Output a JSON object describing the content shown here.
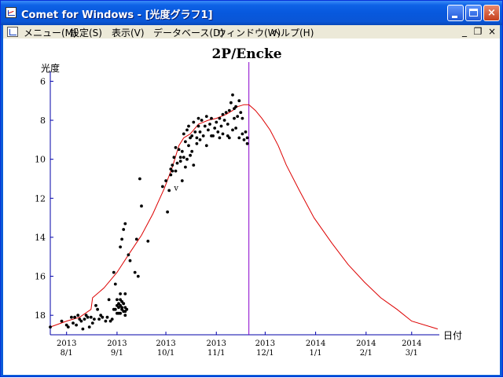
{
  "window": {
    "title": "Comet for Windows - [光度グラフ1]",
    "controls": {
      "minimize": "_",
      "close": "×"
    }
  },
  "menubar": {
    "items": [
      "メニュー(M)",
      "設定(S)",
      "表示(V)",
      "データベース(D)",
      "ウィンドウ(W)",
      "ヘルプ(H)"
    ],
    "mdi_controls": {
      "minimize": "_",
      "restore": "❐",
      "close": "×"
    }
  },
  "chart_data": {
    "type": "scatter",
    "title": "2P/Encke",
    "ylabel": "光度",
    "xlabel": "日付",
    "y_inverted": true,
    "ylim": [
      5.5,
      19.0
    ],
    "yticks": [
      6,
      8,
      10,
      12,
      14,
      16,
      18
    ],
    "xlim": [
      "2013-07-22",
      "2014-03-18"
    ],
    "xticks": [
      {
        "date": "2013-08-01",
        "year": "2013",
        "md": "8/1"
      },
      {
        "date": "2013-09-01",
        "year": "2013",
        "md": "9/1"
      },
      {
        "date": "2013-10-01",
        "year": "2013",
        "md": "10/1"
      },
      {
        "date": "2013-11-01",
        "year": "2013",
        "md": "11/1"
      },
      {
        "date": "2013-12-01",
        "year": "2013",
        "md": "12/1"
      },
      {
        "date": "2014-01-01",
        "year": "2014",
        "md": "1/1"
      },
      {
        "date": "2014-02-01",
        "year": "2014",
        "md": "2/1"
      },
      {
        "date": "2014-03-01",
        "year": "2014",
        "md": "3/1"
      }
    ],
    "marker_date": "2013-11-21",
    "annotations": [
      {
        "text": "v",
        "date": "2013-10-06",
        "mag": 11.6
      }
    ],
    "colors": {
      "axis": "#0000aa",
      "curve": "#dd0000",
      "marker": "#8800cc",
      "points": "#000000"
    },
    "series": [
      {
        "kind": "predicted",
        "points": [
          [
            "2013-07-22",
            18.6
          ],
          [
            "2013-08-01",
            18.3
          ],
          [
            "2013-08-09",
            18.1
          ],
          [
            "2013-08-16",
            17.7
          ],
          [
            "2013-08-17",
            17.1
          ],
          [
            "2013-08-24",
            16.6
          ],
          [
            "2013-09-01",
            15.8
          ],
          [
            "2013-09-08",
            14.9
          ],
          [
            "2013-09-16",
            13.9
          ],
          [
            "2013-09-23",
            12.8
          ],
          [
            "2013-09-30",
            11.5
          ],
          [
            "2013-10-05",
            10.4
          ],
          [
            "2013-10-09",
            9.3
          ],
          [
            "2013-10-12",
            8.9
          ],
          [
            "2013-10-16",
            8.7
          ],
          [
            "2013-10-21",
            8.2
          ],
          [
            "2013-10-27",
            8.0
          ],
          [
            "2013-11-01",
            7.9
          ],
          [
            "2013-11-07",
            7.7
          ],
          [
            "2013-11-11",
            7.5
          ],
          [
            "2013-11-14",
            7.3
          ],
          [
            "2013-11-18",
            7.2
          ],
          [
            "2013-11-21",
            7.2
          ],
          [
            "2013-11-25",
            7.5
          ],
          [
            "2013-11-29",
            7.9
          ],
          [
            "2013-12-04",
            8.5
          ],
          [
            "2013-12-09",
            9.3
          ],
          [
            "2013-12-14",
            10.3
          ],
          [
            "2013-12-22",
            11.6
          ],
          [
            "2013-12-31",
            13.0
          ],
          [
            "2014-01-11",
            14.3
          ],
          [
            "2014-01-21",
            15.4
          ],
          [
            "2014-01-31",
            16.3
          ],
          [
            "2014-02-10",
            17.1
          ],
          [
            "2014-02-20",
            17.7
          ],
          [
            "2014-03-01",
            18.3
          ],
          [
            "2014-03-17",
            18.7
          ]
        ]
      },
      {
        "kind": "observed",
        "points": [
          [
            "2013-07-22",
            18.6
          ],
          [
            "2013-07-29",
            18.3
          ],
          [
            "2013-08-01",
            18.5
          ],
          [
            "2013-08-02",
            18.6
          ],
          [
            "2013-08-04",
            18.1
          ],
          [
            "2013-08-05",
            18.4
          ],
          [
            "2013-08-06",
            18.1
          ],
          [
            "2013-08-07",
            18.5
          ],
          [
            "2013-08-08",
            18.0
          ],
          [
            "2013-08-09",
            18.2
          ],
          [
            "2013-08-10",
            18.3
          ],
          [
            "2013-08-11",
            18.7
          ],
          [
            "2013-08-12",
            18.2
          ],
          [
            "2013-08-13",
            18.0
          ],
          [
            "2013-08-14",
            18.1
          ],
          [
            "2013-08-15",
            18.6
          ],
          [
            "2013-08-16",
            18.1
          ],
          [
            "2013-08-17",
            18.4
          ],
          [
            "2013-08-18",
            18.2
          ],
          [
            "2013-08-19",
            17.5
          ],
          [
            "2013-08-20",
            17.7
          ],
          [
            "2013-08-21",
            18.2
          ],
          [
            "2013-08-22",
            18.0
          ],
          [
            "2013-08-23",
            18.1
          ],
          [
            "2013-08-25",
            18.3
          ],
          [
            "2013-08-26",
            18.1
          ],
          [
            "2013-08-27",
            17.2
          ],
          [
            "2013-08-28",
            18.3
          ],
          [
            "2013-08-30",
            17.7
          ],
          [
            "2013-08-31",
            17.7
          ],
          [
            "2013-09-01",
            17.5
          ],
          [
            "2013-09-02",
            17.9
          ],
          [
            "2013-09-03",
            17.2
          ],
          [
            "2013-09-04",
            17.6
          ],
          [
            "2013-09-05",
            17.4
          ],
          [
            "2013-09-06",
            17.8
          ],
          [
            "2013-09-01",
            17.2
          ],
          [
            "2013-09-02",
            17.6
          ],
          [
            "2013-09-03",
            17.5
          ],
          [
            "2013-09-04",
            17.3
          ],
          [
            "2013-09-05",
            17.8
          ],
          [
            "2013-09-06",
            18.0
          ],
          [
            "2013-09-07",
            17.7
          ],
          [
            "2013-09-01",
            17.9
          ],
          [
            "2013-09-02",
            17.4
          ],
          [
            "2013-09-03",
            17.9
          ],
          [
            "2013-09-04",
            17.7
          ],
          [
            "2013-09-05",
            17.4
          ],
          [
            "2013-09-06",
            17.6
          ],
          [
            "2013-09-03",
            16.9
          ],
          [
            "2013-09-06",
            16.9
          ],
          [
            "2013-08-29",
            18.2
          ],
          [
            "2013-08-30",
            15.8
          ],
          [
            "2013-08-31",
            16.4
          ],
          [
            "2013-09-03",
            14.5
          ],
          [
            "2013-09-04",
            14.1
          ],
          [
            "2013-09-05",
            13.6
          ],
          [
            "2013-09-06",
            13.3
          ],
          [
            "2013-09-08",
            14.9
          ],
          [
            "2013-09-09",
            15.2
          ],
          [
            "2013-09-12",
            15.8
          ],
          [
            "2013-09-13",
            14.1
          ],
          [
            "2013-09-14",
            16.0
          ],
          [
            "2013-09-15",
            11.0
          ],
          [
            "2013-09-16",
            12.4
          ],
          [
            "2013-09-20",
            14.2
          ],
          [
            "2013-09-29",
            11.4
          ],
          [
            "2013-10-01",
            11.1
          ],
          [
            "2013-10-02",
            12.7
          ],
          [
            "2013-10-03",
            11.6
          ],
          [
            "2013-10-04",
            10.5
          ],
          [
            "2013-10-04",
            10.8
          ],
          [
            "2013-10-05",
            10.3
          ],
          [
            "2013-10-05",
            10.6
          ],
          [
            "2013-10-06",
            9.9
          ],
          [
            "2013-10-07",
            10.6
          ],
          [
            "2013-10-07",
            9.4
          ],
          [
            "2013-10-08",
            10.2
          ],
          [
            "2013-10-09",
            9.5
          ],
          [
            "2013-10-10",
            9.9
          ],
          [
            "2013-10-10",
            10.1
          ],
          [
            "2013-10-11",
            9.6
          ],
          [
            "2013-10-11",
            11.1
          ],
          [
            "2013-10-12",
            8.7
          ],
          [
            "2013-10-12",
            9.9
          ],
          [
            "2013-10-13",
            10.4
          ],
          [
            "2013-10-13",
            9.1
          ],
          [
            "2013-10-14",
            8.5
          ],
          [
            "2013-10-14",
            10.0
          ],
          [
            "2013-10-15",
            8.3
          ],
          [
            "2013-10-15",
            9.3
          ],
          [
            "2013-10-16",
            8.9
          ],
          [
            "2013-10-16",
            9.8
          ],
          [
            "2013-10-17",
            8.8
          ],
          [
            "2013-10-17",
            9.6
          ],
          [
            "2013-10-18",
            8.1
          ],
          [
            "2013-10-18",
            10.3
          ],
          [
            "2013-10-19",
            8.6
          ],
          [
            "2013-10-20",
            8.9
          ],
          [
            "2013-10-20",
            9.2
          ],
          [
            "2013-10-21",
            7.9
          ],
          [
            "2013-10-21",
            8.3
          ],
          [
            "2013-10-22",
            9.0
          ],
          [
            "2013-10-23",
            8.0
          ],
          [
            "2013-10-24",
            8.8
          ],
          [
            "2013-10-25",
            8.3
          ],
          [
            "2013-10-26",
            9.3
          ],
          [
            "2013-10-27",
            8.5
          ],
          [
            "2013-10-28",
            8.2
          ],
          [
            "2013-10-29",
            7.9
          ],
          [
            "2013-10-30",
            8.8
          ],
          [
            "2013-10-31",
            8.4
          ],
          [
            "2013-11-01",
            8.1
          ],
          [
            "2013-11-02",
            8.6
          ],
          [
            "2013-11-03",
            7.9
          ],
          [
            "2013-11-04",
            8.3
          ],
          [
            "2013-11-05",
            7.7
          ],
          [
            "2013-11-05",
            8.7
          ],
          [
            "2013-11-06",
            8.0
          ],
          [
            "2013-11-07",
            7.6
          ],
          [
            "2013-11-08",
            8.2
          ],
          [
            "2013-11-08",
            8.8
          ],
          [
            "2013-11-09",
            7.5
          ],
          [
            "2013-11-10",
            7.1
          ],
          [
            "2013-11-11",
            6.7
          ],
          [
            "2013-11-11",
            8.5
          ],
          [
            "2013-11-12",
            7.9
          ],
          [
            "2013-11-13",
            7.3
          ],
          [
            "2013-11-13",
            8.4
          ],
          [
            "2013-11-14",
            7.8
          ],
          [
            "2013-11-15",
            7.0
          ],
          [
            "2013-11-15",
            8.9
          ],
          [
            "2013-11-16",
            7.6
          ],
          [
            "2013-11-17",
            8.7
          ],
          [
            "2013-11-18",
            9.0
          ],
          [
            "2013-11-19",
            8.6
          ],
          [
            "2013-11-20",
            9.2
          ],
          [
            "2013-11-20",
            8.9
          ],
          [
            "2013-11-09",
            8.9
          ],
          [
            "2013-11-03",
            8.9
          ],
          [
            "2013-10-29",
            8.8
          ],
          [
            "2013-10-22",
            8.6
          ],
          [
            "2013-10-26",
            7.8
          ],
          [
            "2013-11-12",
            7.4
          ],
          [
            "2013-11-17",
            7.9
          ]
        ]
      }
    ]
  }
}
